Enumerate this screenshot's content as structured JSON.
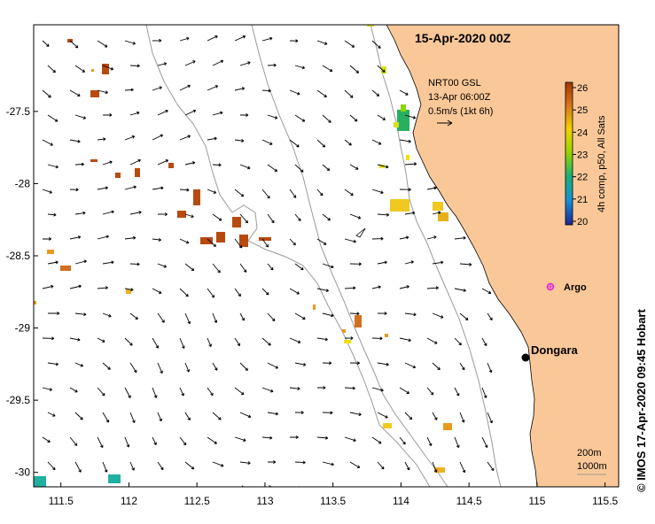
{
  "title": "15-Apr-2020 00Z",
  "legend": {
    "line1": "NRT00 GSL",
    "line2": "13-Apr 06:00Z",
    "line3": "0.5m/s (1kt 6h)"
  },
  "colorbar": {
    "label": "4h comp, p50, All Sats",
    "ticks": [
      "26",
      "25",
      "24",
      "23",
      "22",
      "21",
      "20"
    ],
    "colors": [
      "#c04a00",
      "#e6a100",
      "#f2e600",
      "#8fd400",
      "#1ab87a",
      "#1593d6",
      "#1a2ca0"
    ]
  },
  "places": {
    "dongara": "Dongara",
    "argo": "Argo"
  },
  "depth_legend": {
    "line1": "200m",
    "line2": "1000m"
  },
  "credit": "© IMOS 17-Apr-2020 09:45 Hobart",
  "axes": {
    "x_ticks": [
      "111.5",
      "112",
      "112.5",
      "113",
      "113.5",
      "114",
      "114.5",
      "115",
      "115.5"
    ],
    "x_values": [
      111.5,
      112,
      112.5,
      113,
      113.5,
      114,
      114.5,
      115,
      115.5
    ],
    "y_ticks": [
      "-27.5",
      "-28",
      "-28.5",
      "-29",
      "-29.5",
      "-30"
    ],
    "y_values": [
      -27.5,
      -28,
      -28.5,
      -29,
      -29.5,
      -30
    ],
    "xlim": [
      111.3,
      115.6
    ],
    "ylim": [
      -30.1,
      -26.9
    ]
  },
  "colors": {
    "land": "#fac898",
    "contour": "#9a9a9a",
    "arrow": "#000000",
    "argo": "#e020e0"
  }
}
